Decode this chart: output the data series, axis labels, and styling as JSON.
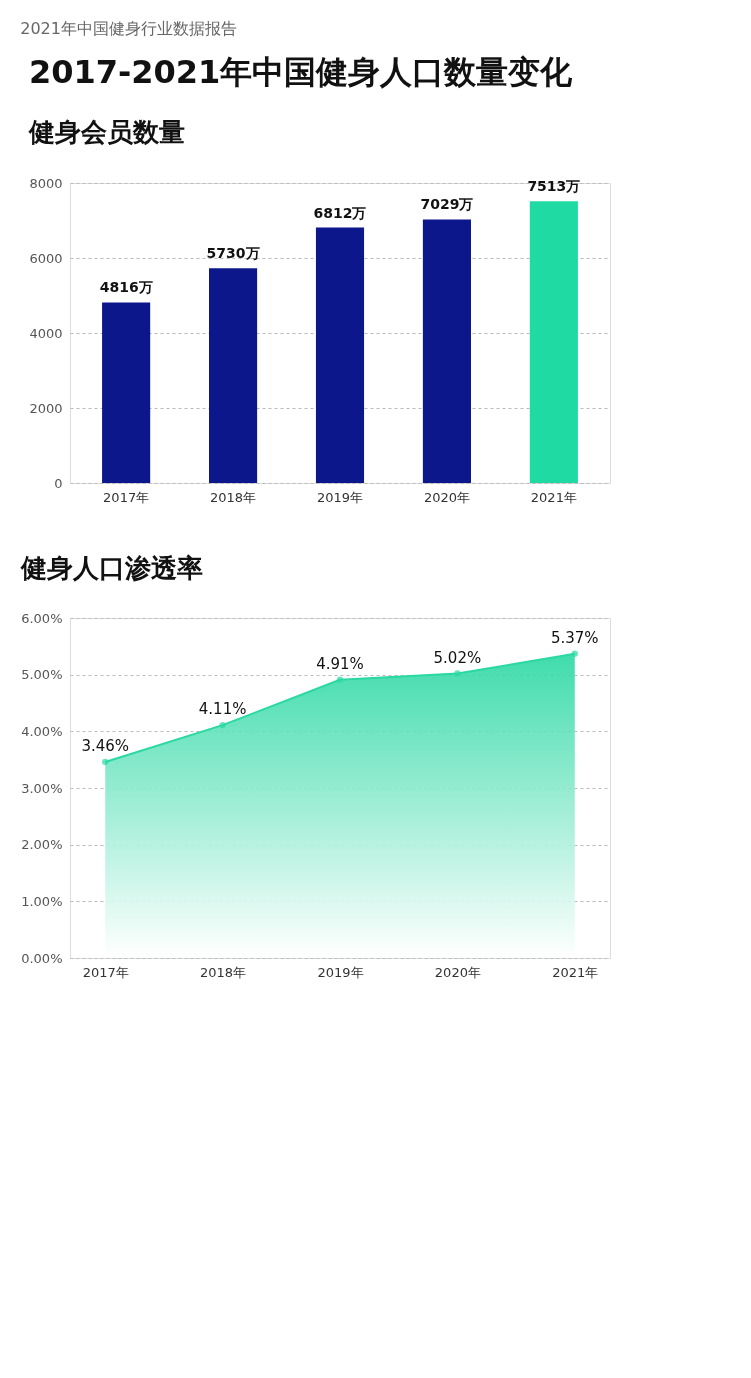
{
  "chart_data": [
    {
      "type": "bar",
      "title": "2017-2021年中国健身人口数量变化",
      "subtitle": "健身会员数量",
      "annotations": [
        "2021年中国健身行业数据报告"
      ],
      "categories": [
        "2017年",
        "2018年",
        "2019年",
        "2020年",
        "2021年"
      ],
      "values": [
        4816,
        5730,
        6812,
        7029,
        7513
      ],
      "colors": [
        "#0d178c",
        "#0d178c",
        "#0d178c",
        "#0d178c",
        "#1fdba3"
      ],
      "value_labels": [
        "4816万",
        "5730万",
        "6812万",
        "7029万",
        "7513万"
      ],
      "ylim": [
        0,
        8000
      ],
      "yticks": [
        0,
        2000,
        4000,
        6000,
        8000
      ],
      "grid": "y"
    },
    {
      "type": "area",
      "title": "健身人口渗透率",
      "categories": [
        "2017年",
        "2018年",
        "2019年",
        "2020年",
        "2021年"
      ],
      "series": [
        {
          "color": "#2ad8a2",
          "values": [
            3.46,
            4.11,
            4.91,
            5.02,
            5.37
          ]
        }
      ],
      "value_labels": [
        "3.46%",
        "4.11%",
        "4.91%",
        "5.02%",
        "5.37%"
      ],
      "marker": "circle",
      "ylim": [
        0,
        6
      ],
      "yticks": [
        {
          "value": 0,
          "label": "0.00%"
        },
        {
          "value": 1,
          "label": "1.00%"
        },
        {
          "value": 2,
          "label": "2.00%"
        },
        {
          "value": 3,
          "label": "3.00%"
        },
        {
          "value": 4,
          "label": "4.00%"
        },
        {
          "value": 5,
          "label": "5.00%"
        },
        {
          "value": 6,
          "label": "6.00%"
        }
      ],
      "grid": "y"
    }
  ]
}
